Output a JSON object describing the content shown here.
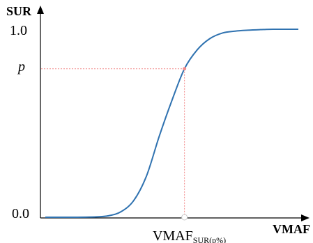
{
  "chart_data": {
    "type": "line",
    "title": "",
    "xlabel": "VMAF",
    "ylabel": "SUR",
    "ylim": [
      0,
      1
    ],
    "y_tick_labels": [
      "0.0",
      "1.0"
    ],
    "p_label": "p",
    "marker_label": {
      "main": "VMAF",
      "subscript": "SUR(p%)"
    },
    "series": [
      {
        "x": [
          0,
          10,
          20,
          25,
          30,
          35,
          40,
          45,
          50,
          55,
          60,
          65,
          70,
          75,
          80,
          85,
          90,
          100
        ],
        "y": [
          0.0,
          0.0,
          0.002,
          0.008,
          0.03,
          0.09,
          0.22,
          0.43,
          0.62,
          0.79,
          0.89,
          0.95,
          0.98,
          0.99,
          0.995,
          0.998,
          1.0,
          1.0
        ]
      }
    ],
    "marker": {
      "x": 55,
      "y": 0.79
    },
    "colors": {
      "curve": "#2f72b0",
      "guide": "#f28b8b",
      "axes": "#000000"
    },
    "grid": false
  }
}
